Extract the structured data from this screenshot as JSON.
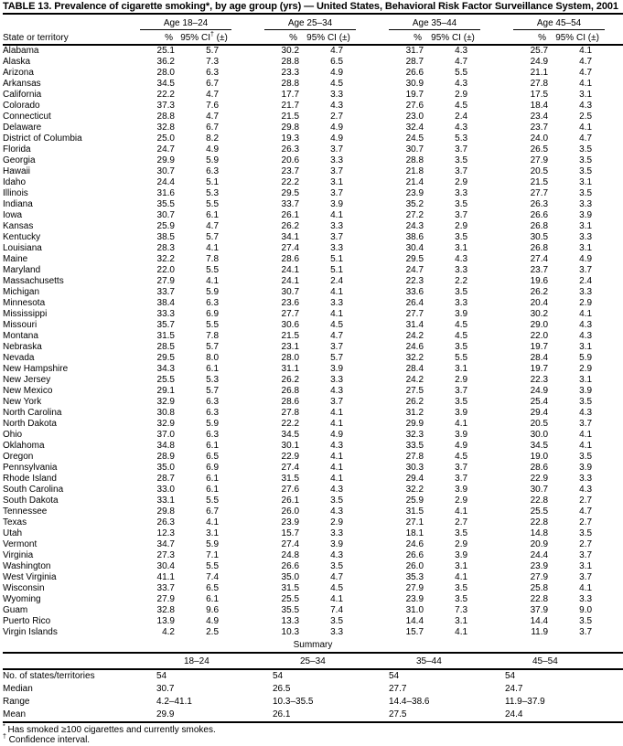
{
  "title": "TABLE 13. Prevalence of cigarette smoking*, by age group (yrs) — United States, Behavioral Risk Factor Surveillance System, 2001",
  "header": {
    "state_col": "State or territory",
    "age_groups": [
      "Age 18–24",
      "Age 25–34",
      "Age 35–44",
      "Age 45–54"
    ],
    "pct_label": "%",
    "ci_label_parts": [
      "95% CI",
      "†",
      " (±)"
    ],
    "ci_label_plain": "95% CI (±)"
  },
  "rows": [
    {
      "state": "Alabama",
      "values": [
        "25.1",
        "5.7",
        "30.2",
        "4.7",
        "31.7",
        "4.3",
        "25.7",
        "4.1"
      ]
    },
    {
      "state": "Alaska",
      "values": [
        "36.2",
        "7.3",
        "28.8",
        "6.5",
        "28.7",
        "4.7",
        "24.9",
        "4.7"
      ]
    },
    {
      "state": "Arizona",
      "values": [
        "28.0",
        "6.3",
        "23.3",
        "4.9",
        "26.6",
        "5.5",
        "21.1",
        "4.7"
      ]
    },
    {
      "state": "Arkansas",
      "values": [
        "34.5",
        "6.7",
        "28.8",
        "4.5",
        "30.9",
        "4.3",
        "27.8",
        "4.1"
      ]
    },
    {
      "state": "California",
      "values": [
        "22.2",
        "4.7",
        "17.7",
        "3.3",
        "19.7",
        "2.9",
        "17.5",
        "3.1"
      ]
    },
    {
      "state": "Colorado",
      "values": [
        "37.3",
        "7.6",
        "21.7",
        "4.3",
        "27.6",
        "4.5",
        "18.4",
        "4.3"
      ]
    },
    {
      "state": "Connecticut",
      "values": [
        "28.8",
        "4.7",
        "21.5",
        "2.7",
        "23.0",
        "2.4",
        "23.4",
        "2.5"
      ]
    },
    {
      "state": "Delaware",
      "values": [
        "32.8",
        "6.7",
        "29.8",
        "4.9",
        "32.4",
        "4.3",
        "23.7",
        "4.1"
      ]
    },
    {
      "state": "District of Columbia",
      "values": [
        "25.0",
        "8.2",
        "19.3",
        "4.9",
        "24.5",
        "5.3",
        "24.0",
        "4.7"
      ]
    },
    {
      "state": "Florida",
      "values": [
        "24.7",
        "4.9",
        "26.3",
        "3.7",
        "30.7",
        "3.7",
        "26.5",
        "3.5"
      ]
    },
    {
      "state": "Georgia",
      "values": [
        "29.9",
        "5.9",
        "20.6",
        "3.3",
        "28.8",
        "3.5",
        "27.9",
        "3.5"
      ]
    },
    {
      "state": "Hawaii",
      "values": [
        "30.7",
        "6.3",
        "23.7",
        "3.7",
        "21.8",
        "3.7",
        "20.5",
        "3.5"
      ]
    },
    {
      "state": "Idaho",
      "values": [
        "24.4",
        "5.1",
        "22.2",
        "3.1",
        "21.4",
        "2.9",
        "21.5",
        "3.1"
      ]
    },
    {
      "state": "Illinois",
      "values": [
        "31.6",
        "5.3",
        "29.5",
        "3.7",
        "23.9",
        "3.3",
        "27.7",
        "3.5"
      ]
    },
    {
      "state": "Indiana",
      "values": [
        "35.5",
        "5.5",
        "33.7",
        "3.9",
        "35.2",
        "3.5",
        "26.3",
        "3.3"
      ]
    },
    {
      "state": "Iowa",
      "values": [
        "30.7",
        "6.1",
        "26.1",
        "4.1",
        "27.2",
        "3.7",
        "26.6",
        "3.9"
      ]
    },
    {
      "state": "Kansas",
      "values": [
        "25.9",
        "4.7",
        "26.2",
        "3.3",
        "24.3",
        "2.9",
        "26.8",
        "3.1"
      ]
    },
    {
      "state": "Kentucky",
      "values": [
        "38.5",
        "5.7",
        "34.1",
        "3.7",
        "38.6",
        "3.5",
        "30.5",
        "3.3"
      ]
    },
    {
      "state": "Louisiana",
      "values": [
        "28.3",
        "4.1",
        "27.4",
        "3.3",
        "30.4",
        "3.1",
        "26.8",
        "3.1"
      ]
    },
    {
      "state": "Maine",
      "values": [
        "32.2",
        "7.8",
        "28.6",
        "5.1",
        "29.5",
        "4.3",
        "27.4",
        "4.9"
      ]
    },
    {
      "state": "Maryland",
      "values": [
        "22.0",
        "5.5",
        "24.1",
        "5.1",
        "24.7",
        "3.3",
        "23.7",
        "3.7"
      ]
    },
    {
      "state": "Massachusetts",
      "values": [
        "27.9",
        "4.1",
        "24.1",
        "2.4",
        "22.3",
        "2.2",
        "19.6",
        "2.4"
      ]
    },
    {
      "state": "Michigan",
      "values": [
        "33.7",
        "5.9",
        "30.7",
        "4.1",
        "33.6",
        "3.5",
        "26.2",
        "3.3"
      ]
    },
    {
      "state": "Minnesota",
      "values": [
        "38.4",
        "6.3",
        "23.6",
        "3.3",
        "26.4",
        "3.3",
        "20.4",
        "2.9"
      ]
    },
    {
      "state": "Mississippi",
      "values": [
        "33.3",
        "6.9",
        "27.7",
        "4.1",
        "27.7",
        "3.9",
        "30.2",
        "4.1"
      ]
    },
    {
      "state": "Missouri",
      "values": [
        "35.7",
        "5.5",
        "30.6",
        "4.5",
        "31.4",
        "4.5",
        "29.0",
        "4.3"
      ]
    },
    {
      "state": "Montana",
      "values": [
        "31.5",
        "7.8",
        "21.5",
        "4.7",
        "24.2",
        "4.5",
        "22.0",
        "4.3"
      ]
    },
    {
      "state": "Nebraska",
      "values": [
        "28.5",
        "5.7",
        "23.1",
        "3.7",
        "24.6",
        "3.5",
        "19.7",
        "3.1"
      ]
    },
    {
      "state": "Nevada",
      "values": [
        "29.5",
        "8.0",
        "28.0",
        "5.7",
        "32.2",
        "5.5",
        "28.4",
        "5.9"
      ]
    },
    {
      "state": "New Hampshire",
      "values": [
        "34.3",
        "6.1",
        "31.1",
        "3.9",
        "28.4",
        "3.1",
        "19.7",
        "2.9"
      ]
    },
    {
      "state": "New Jersey",
      "values": [
        "25.5",
        "5.3",
        "26.2",
        "3.3",
        "24.2",
        "2.9",
        "22.3",
        "3.1"
      ]
    },
    {
      "state": "New Mexico",
      "values": [
        "29.1",
        "5.7",
        "26.8",
        "4.3",
        "27.5",
        "3.7",
        "24.9",
        "3.9"
      ]
    },
    {
      "state": "New York",
      "values": [
        "32.9",
        "6.3",
        "28.6",
        "3.7",
        "26.2",
        "3.5",
        "25.4",
        "3.5"
      ]
    },
    {
      "state": "North Carolina",
      "values": [
        "30.8",
        "6.3",
        "27.8",
        "4.1",
        "31.2",
        "3.9",
        "29.4",
        "4.3"
      ]
    },
    {
      "state": "North Dakota",
      "values": [
        "32.9",
        "5.9",
        "22.2",
        "4.1",
        "29.9",
        "4.1",
        "20.5",
        "3.7"
      ]
    },
    {
      "state": "Ohio",
      "values": [
        "37.0",
        "6.3",
        "34.5",
        "4.9",
        "32.3",
        "3.9",
        "30.0",
        "4.1"
      ]
    },
    {
      "state": "Oklahoma",
      "values": [
        "34.8",
        "6.1",
        "30.1",
        "4.3",
        "33.5",
        "4.9",
        "34.5",
        "4.1"
      ]
    },
    {
      "state": "Oregon",
      "values": [
        "28.9",
        "6.5",
        "22.9",
        "4.1",
        "27.8",
        "4.5",
        "19.0",
        "3.5"
      ]
    },
    {
      "state": "Pennsylvania",
      "values": [
        "35.0",
        "6.9",
        "27.4",
        "4.1",
        "30.3",
        "3.7",
        "28.6",
        "3.9"
      ]
    },
    {
      "state": "Rhode Island",
      "values": [
        "28.7",
        "6.1",
        "31.5",
        "4.1",
        "29.4",
        "3.7",
        "22.9",
        "3.3"
      ]
    },
    {
      "state": "South Carolina",
      "values": [
        "33.0",
        "6.1",
        "27.6",
        "4.3",
        "32.2",
        "3.9",
        "30.7",
        "4.3"
      ]
    },
    {
      "state": "South Dakota",
      "values": [
        "33.1",
        "5.5",
        "26.1",
        "3.5",
        "25.9",
        "2.9",
        "22.8",
        "2.7"
      ]
    },
    {
      "state": "Tennessee",
      "values": [
        "29.8",
        "6.7",
        "26.0",
        "4.3",
        "31.5",
        "4.1",
        "25.5",
        "4.7"
      ]
    },
    {
      "state": "Texas",
      "values": [
        "26.3",
        "4.1",
        "23.9",
        "2.9",
        "27.1",
        "2.7",
        "22.8",
        "2.7"
      ]
    },
    {
      "state": "Utah",
      "values": [
        "12.3",
        "3.1",
        "15.7",
        "3.3",
        "18.1",
        "3.5",
        "14.8",
        "3.5"
      ]
    },
    {
      "state": "Vermont",
      "values": [
        "34.7",
        "5.9",
        "27.4",
        "3.9",
        "24.6",
        "2.9",
        "20.9",
        "2.7"
      ]
    },
    {
      "state": "Virginia",
      "values": [
        "27.3",
        "7.1",
        "24.8",
        "4.3",
        "26.6",
        "3.9",
        "24.4",
        "3.7"
      ]
    },
    {
      "state": "Washington",
      "values": [
        "30.4",
        "5.5",
        "26.6",
        "3.5",
        "26.0",
        "3.1",
        "23.9",
        "3.1"
      ]
    },
    {
      "state": "West Virginia",
      "values": [
        "41.1",
        "7.4",
        "35.0",
        "4.7",
        "35.3",
        "4.1",
        "27.9",
        "3.7"
      ]
    },
    {
      "state": "Wisconsin",
      "values": [
        "33.7",
        "6.5",
        "31.5",
        "4.5",
        "27.9",
        "3.5",
        "25.8",
        "4.1"
      ]
    },
    {
      "state": "Wyoming",
      "values": [
        "27.9",
        "6.1",
        "25.5",
        "4.1",
        "23.9",
        "3.5",
        "22.8",
        "3.3"
      ]
    },
    {
      "state": "Guam",
      "values": [
        "32.8",
        "9.6",
        "35.5",
        "7.4",
        "31.0",
        "7.3",
        "37.9",
        "9.0"
      ]
    },
    {
      "state": "Puerto Rico",
      "values": [
        "13.9",
        "4.9",
        "13.3",
        "3.5",
        "14.4",
        "3.1",
        "14.4",
        "3.5"
      ]
    },
    {
      "state": "Virgin Islands",
      "values": [
        "4.2",
        "2.5",
        "10.3",
        "3.3",
        "15.7",
        "4.1",
        "11.9",
        "3.7"
      ]
    }
  ],
  "summary": {
    "title": "Summary",
    "col_headers": [
      "18–24",
      "25–34",
      "35–44",
      "45–54"
    ],
    "rows": [
      {
        "label": "No. of states/territories",
        "values": [
          "54",
          "54",
          "54",
          "54"
        ]
      },
      {
        "label": "Median",
        "values": [
          "30.7",
          "26.5",
          "27.7",
          "24.7"
        ]
      },
      {
        "label": "Range",
        "values": [
          "4.2–41.1",
          "10.3–35.5",
          "14.4–38.6",
          "11.9–37.9"
        ]
      },
      {
        "label": "Mean",
        "values": [
          "29.9",
          "26.1",
          "27.5",
          "24.4"
        ]
      }
    ]
  },
  "footnotes": [
    {
      "symbol": "*",
      "text": "Has smoked ≥100 cigarettes and currently smokes."
    },
    {
      "symbol": "†",
      "text": "Confidence interval."
    }
  ]
}
